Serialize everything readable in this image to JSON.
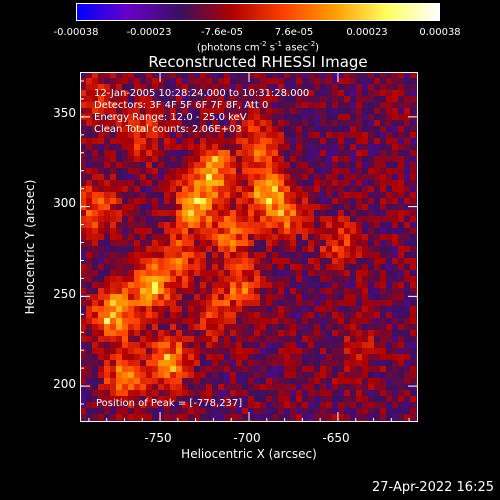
{
  "colors": {
    "colorbar_stops": [
      "#0000ff",
      "#6a00c8",
      "#3a1060",
      "#b00000",
      "#ff4000",
      "#ffa000",
      "#ffff60",
      "#ffffff"
    ],
    "background": "#000000",
    "text": "#ffffff"
  },
  "chart_data": {
    "type": "heatmap",
    "title": "Reconstructed RHESSI Image",
    "xlabel": "Heliocentric X (arcsec)",
    "ylabel": "Heliocentric Y (arcsec)",
    "xlim": [
      -795,
      -605
    ],
    "ylim": [
      180,
      375
    ],
    "x_ticks": [
      -750,
      -700,
      -650
    ],
    "y_ticks": [
      200,
      250,
      300,
      350
    ],
    "colorbar": {
      "tick_labels": [
        "-0.00038",
        "-0.00023",
        "-7.6e-05",
        "7.6e-05",
        "0.00023",
        "0.00038"
      ],
      "units": "(photons cm",
      "units_exp1": "-2",
      "units_mid": " s",
      "units_exp2": "-1",
      "units_mid2": " asec",
      "units_exp3": "-2",
      "units_end": ")",
      "range": [
        -0.00038,
        0.00038
      ]
    },
    "annotations": [
      "12-Jan-2005 10:28:24.000 to 10:31:28.000",
      "Detectors: 3F 4F 5F 6F 7F 8F, Att 0",
      "Energy Range: 12.0 - 25.0 keV",
      "Clean    Total counts: 2.06E+03"
    ],
    "peak_label": "Position of Peak = [-778,237]",
    "peak": [
      -778,
      237
    ],
    "bright_regions": [
      {
        "x": -775,
        "y": 240,
        "value": 0.00036
      },
      {
        "x": -755,
        "y": 255,
        "value": 0.0003
      },
      {
        "x": -745,
        "y": 215,
        "value": 0.00028
      },
      {
        "x": -770,
        "y": 205,
        "value": 0.00024
      },
      {
        "x": -730,
        "y": 300,
        "value": 0.00032
      },
      {
        "x": -720,
        "y": 320,
        "value": 0.0003
      },
      {
        "x": -710,
        "y": 285,
        "value": 0.00026
      },
      {
        "x": -690,
        "y": 310,
        "value": 0.00028
      },
      {
        "x": -680,
        "y": 295,
        "value": 0.00024
      },
      {
        "x": -695,
        "y": 335,
        "value": 0.0002
      },
      {
        "x": -785,
        "y": 300,
        "value": 0.00022
      },
      {
        "x": -760,
        "y": 340,
        "value": 0.00018
      },
      {
        "x": -705,
        "y": 255,
        "value": 0.0002
      },
      {
        "x": -740,
        "y": 270,
        "value": 0.00022
      },
      {
        "x": -785,
        "y": 360,
        "value": 0.00012
      },
      {
        "x": -650,
        "y": 280,
        "value": 0.00014
      },
      {
        "x": -640,
        "y": 220,
        "value": 0.0001
      },
      {
        "x": -720,
        "y": 240,
        "value": 0.00016
      }
    ],
    "grid": false
  },
  "footer": {
    "date": "27-Apr-2022 16:25"
  }
}
